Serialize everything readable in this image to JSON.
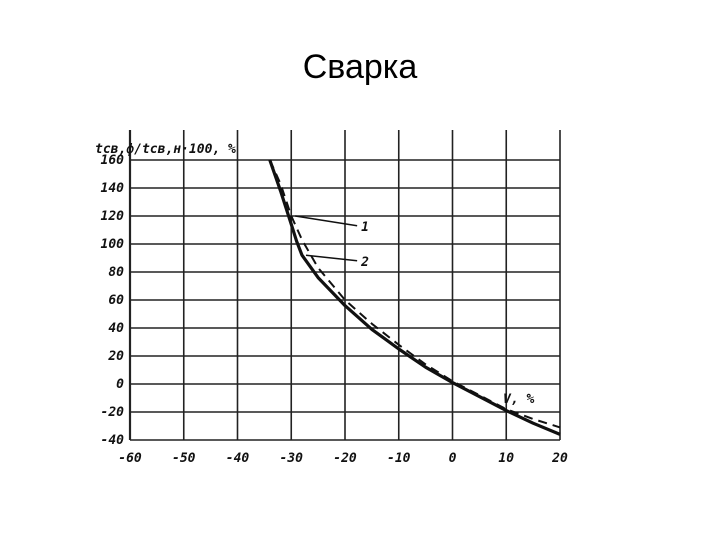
{
  "slide": {
    "title": "Сварка"
  },
  "chart_data": {
    "type": "line",
    "title": "",
    "ylabel": "tсв,ф/tсв,н·100, %",
    "xlabel": "V, %",
    "xlim": [
      -60,
      20
    ],
    "ylim": [
      -40,
      160
    ],
    "xticks": [
      -60,
      -50,
      -40,
      -30,
      -20,
      -10,
      0,
      10,
      20
    ],
    "yticks": [
      160,
      140,
      120,
      100,
      80,
      60,
      40,
      20,
      0,
      -20,
      -40
    ],
    "xtick_labels": [
      "-60",
      "-50",
      "-40",
      "-30",
      "-20",
      "-10",
      "0",
      "10",
      "20"
    ],
    "ytick_labels": [
      "160",
      "140",
      "120",
      "100",
      "80",
      "60",
      "40",
      "20",
      "0",
      "-20",
      "-40"
    ],
    "grid": true,
    "legend": "none",
    "series": [
      {
        "name": "1",
        "style": "dashed",
        "x": [
          -34,
          -32,
          -30,
          -28,
          -25,
          -20,
          -15,
          -10,
          -5,
          0,
          5,
          10,
          15,
          20
        ],
        "y": [
          160,
          143,
          120,
          103,
          83,
          60,
          43,
          28,
          14,
          2,
          -8,
          -18,
          -25,
          -31
        ]
      },
      {
        "name": "2",
        "style": "solid",
        "x": [
          -34,
          -32,
          -30,
          -29,
          -28,
          -25,
          -20,
          -15,
          -10,
          -5,
          0,
          5,
          10,
          15,
          20
        ],
        "y": [
          160,
          138,
          114,
          102,
          92,
          76,
          56,
          39,
          25,
          12,
          1,
          -9,
          -19,
          -28,
          -36
        ]
      }
    ],
    "annotations": [
      {
        "text": "1",
        "target_series": "1",
        "x": -17,
        "y": 113
      },
      {
        "text": "2",
        "target_series": "2",
        "x": -17,
        "y": 88
      }
    ],
    "colors": {
      "line": "#111111",
      "grid": "#222222",
      "background": "#ffffff"
    }
  }
}
